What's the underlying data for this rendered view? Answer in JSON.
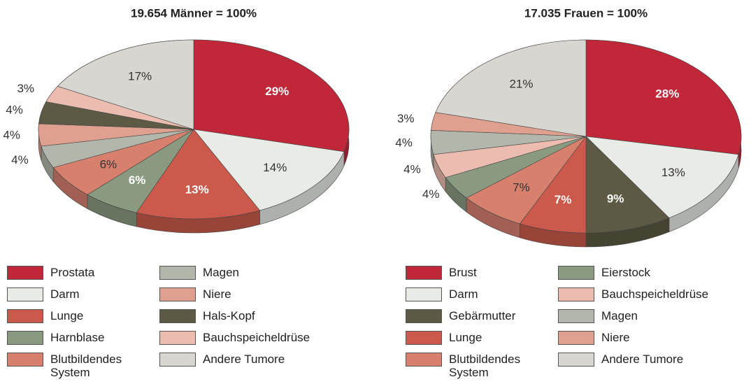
{
  "chart_data": [
    {
      "type": "pie",
      "title": "19.654 Männer = 100%",
      "categories": [
        "Prostata",
        "Darm",
        "Lunge",
        "Harnblase",
        "Blutbildendes System",
        "Magen",
        "Niere",
        "Hals-Kopf",
        "Bauchspeicheldrüse",
        "Andere Tumore"
      ],
      "values": [
        29,
        14,
        13,
        6,
        6,
        4,
        4,
        4,
        3,
        17
      ],
      "value_labels": [
        "29%",
        "14%",
        "13%",
        "6%",
        "6%",
        "4%",
        "4%",
        "4%",
        "3%",
        "17%"
      ],
      "colors": [
        "#c0283a",
        "#e8ebe6",
        "#cc5a4c",
        "#8a9a80",
        "#d7806e",
        "#b3b6ab",
        "#e0a090",
        "#5c5a44",
        "#ecbcb0",
        "#d8d6d0"
      ]
    },
    {
      "type": "pie",
      "title": "17.035 Frauen = 100%",
      "categories": [
        "Brust",
        "Darm",
        "Gebärmutter",
        "Lunge",
        "Blutbildendes System",
        "Eierstock",
        "Bauchspeicheldrüse",
        "Magen",
        "Niere",
        "Andere Tumore"
      ],
      "values": [
        28,
        13,
        9,
        7,
        7,
        4,
        4,
        4,
        3,
        21
      ],
      "value_labels": [
        "28%",
        "13%",
        "9%",
        "7%",
        "7%",
        "4%",
        "4%",
        "4%",
        "3%",
        "21%"
      ],
      "colors": [
        "#c0283a",
        "#e8ebe6",
        "#5c5a44",
        "#cc5a4c",
        "#d7806e",
        "#8a9a80",
        "#ecbcb0",
        "#b3b6ab",
        "#e0a090",
        "#d8d6d0"
      ]
    }
  ]
}
